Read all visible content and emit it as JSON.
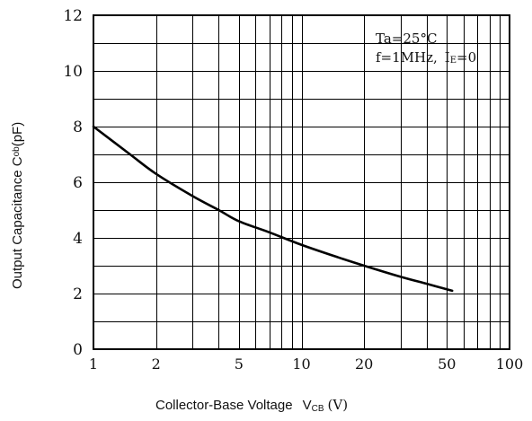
{
  "chart_data": {
    "type": "line",
    "title": "",
    "xlabel": {
      "text": "Collector-Base Voltage",
      "symbol_main": "V",
      "symbol_sub": "CB",
      "unit": "(V)"
    },
    "ylabel": {
      "main": "Output Capacitance C",
      "sub": "ob",
      "unit": "(pF)"
    },
    "x_scale": "log",
    "xlim": [
      1,
      100
    ],
    "ylim": [
      0,
      12
    ],
    "x_ticks": [
      {
        "value": 1,
        "label": "1"
      },
      {
        "value": 2,
        "label": "2"
      },
      {
        "value": 5,
        "label": "5"
      },
      {
        "value": 10,
        "label": "10"
      },
      {
        "value": 20,
        "label": "20"
      },
      {
        "value": 50,
        "label": "50"
      },
      {
        "value": 100,
        "label": "100"
      }
    ],
    "y_ticks": [
      {
        "value": 0,
        "label": "0"
      },
      {
        "value": 2,
        "label": "2"
      },
      {
        "value": 4,
        "label": "4"
      },
      {
        "value": 6,
        "label": "6"
      },
      {
        "value": 8,
        "label": "8"
      },
      {
        "value": 10,
        "label": "10"
      },
      {
        "value": 12,
        "label": "12"
      }
    ],
    "grid": true,
    "annotation": {
      "line1": "Ta=25°C",
      "line2_a": "f=1MHz,",
      "line2_b": "I",
      "line2_sub": "E",
      "line2_c": "=0"
    },
    "series": [
      {
        "x": [
          1,
          1.5,
          2,
          3,
          4,
          5,
          7,
          10,
          15,
          20,
          30,
          40,
          53
        ],
        "y": [
          8.0,
          7.0,
          6.3,
          5.5,
          5.0,
          4.6,
          4.2,
          3.75,
          3.3,
          3.0,
          2.6,
          2.35,
          2.1
        ]
      }
    ]
  }
}
